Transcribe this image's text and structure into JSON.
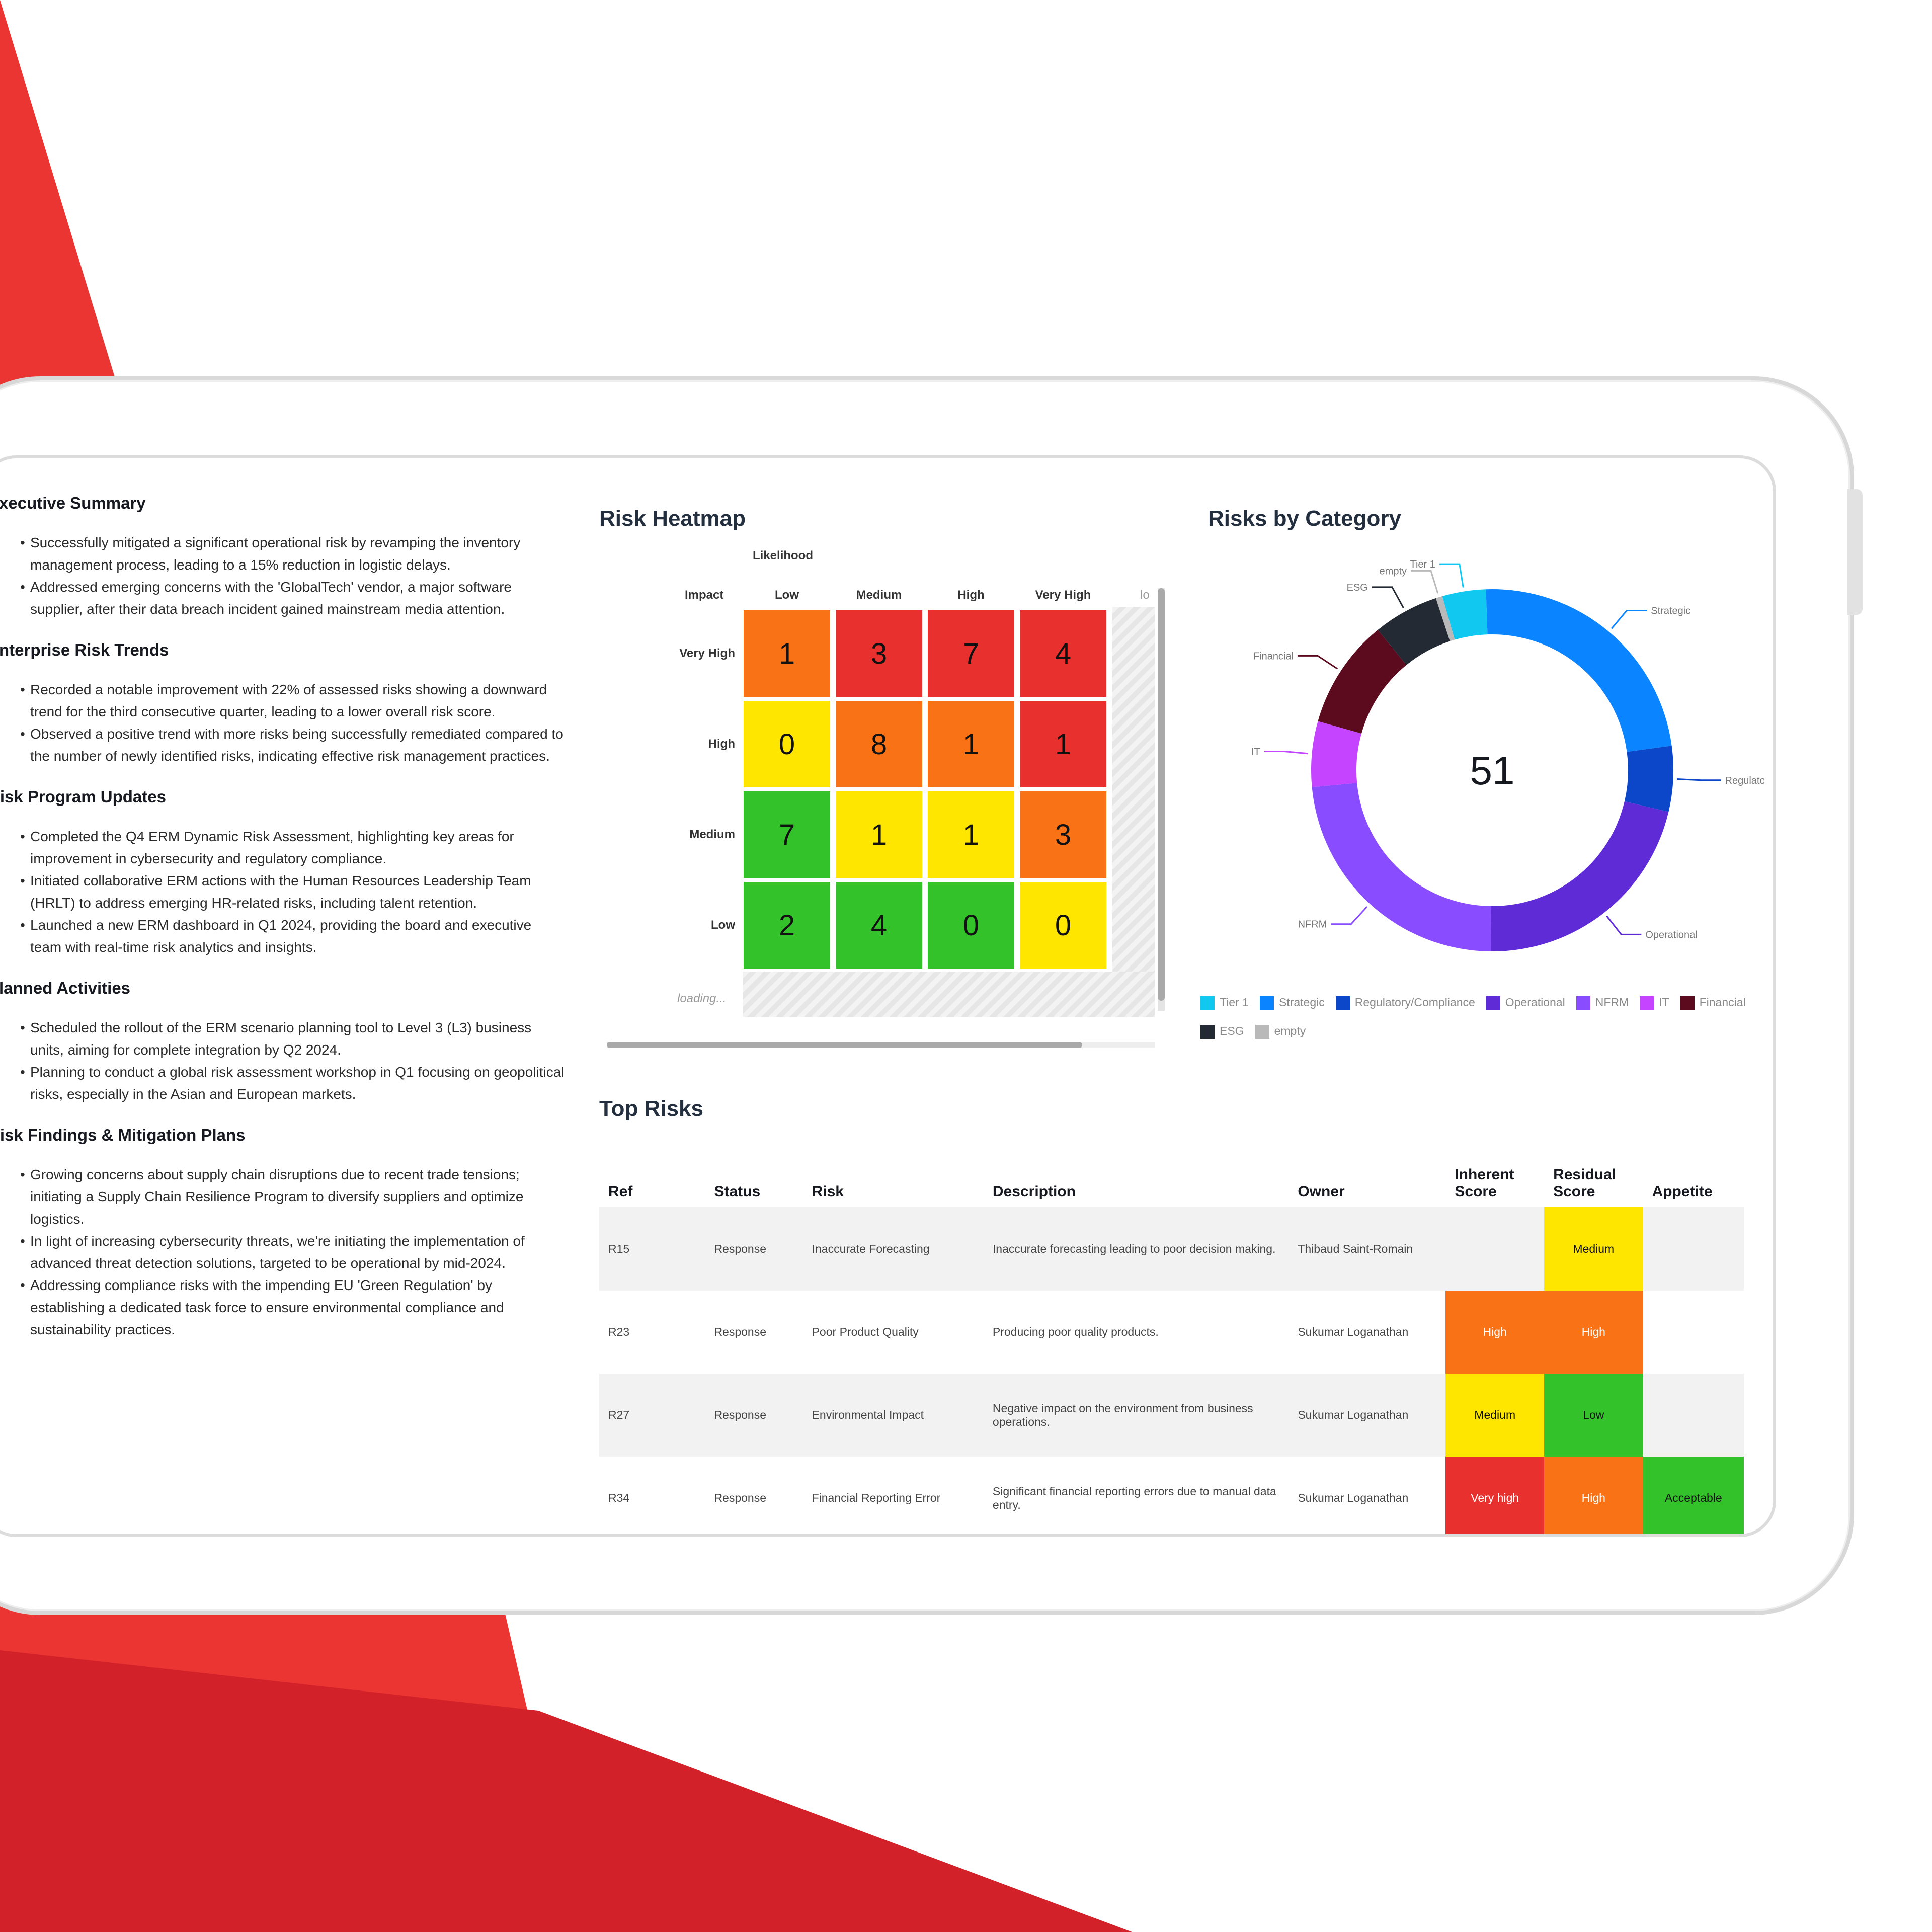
{
  "colors": {
    "accent_red": "#e8322f",
    "accent_red_dark": "#d42027",
    "heat_very_high": "#e8312f",
    "heat_high": "#f97316",
    "heat_medium": "#ffe600",
    "heat_low": "#33c22a"
  },
  "summary": [
    {
      "title": "Executive Summary",
      "bullets": [
        "Successfully mitigated a significant operational risk by revamping the inventory management process, leading to a 15% reduction in logistic delays.",
        "Addressed emerging concerns with the 'GlobalTech' vendor, a major software supplier, after their data breach incident gained mainstream media attention."
      ]
    },
    {
      "title": "Enterprise Risk Trends",
      "bullets": [
        "Recorded a notable improvement with 22% of assessed risks showing a downward trend for the third consecutive quarter, leading to a lower overall risk score.",
        "Observed a positive trend with more risks being successfully remediated compared to the number of newly identified risks, indicating effective risk management practices."
      ]
    },
    {
      "title": "Risk Program Updates",
      "bullets": [
        "Completed the Q4 ERM Dynamic Risk Assessment, highlighting key areas for improvement in cybersecurity and regulatory compliance.",
        "Initiated collaborative ERM actions with the Human Resources Leadership Team (HRLT) to address emerging HR-related risks, including talent retention.",
        "Launched a new ERM dashboard in Q1 2024, providing the board and executive team with real-time risk analytics and insights."
      ]
    },
    {
      "title": "Planned Activities",
      "bullets": [
        "Scheduled the rollout of the ERM scenario planning tool to Level 3 (L3) business units, aiming for complete integration by Q2 2024.",
        "Planning to conduct a global risk assessment workshop in Q1 focusing on geopolitical risks, especially in the Asian and European markets."
      ]
    },
    {
      "title": "Risk Findings & Mitigation Plans",
      "bullets": [
        "Growing concerns about supply chain disruptions due to recent trade tensions; initiating a Supply Chain Resilience Program to diversify suppliers and optimize logistics.",
        "In light of increasing cybersecurity threats, we're initiating the implementation of advanced threat detection solutions, targeted to be operational by mid-2024.",
        "Addressing compliance risks with the impending EU 'Green Regulation' by establishing a dedicated task force to ensure environmental compliance and sustainability practices."
      ]
    }
  ],
  "heatmap": {
    "title": "Risk Heatmap",
    "likelihood_label": "Likelihood",
    "impact_label": "Impact",
    "columns": [
      "Low",
      "Medium",
      "High",
      "Very High"
    ],
    "extra_column_stub": "lo",
    "rows": [
      {
        "label": "Very High",
        "values": [
          1,
          3,
          7,
          4
        ],
        "levels": [
          "high",
          "very_high",
          "very_high",
          "very_high"
        ]
      },
      {
        "label": "High",
        "values": [
          0,
          8,
          1,
          1
        ],
        "levels": [
          "medium",
          "high",
          "high",
          "very_high"
        ]
      },
      {
        "label": "Medium",
        "values": [
          7,
          1,
          1,
          3
        ],
        "levels": [
          "low",
          "medium",
          "medium",
          "high"
        ]
      },
      {
        "label": "Low",
        "values": [
          2,
          4,
          0,
          0
        ],
        "levels": [
          "low",
          "low",
          "low",
          "medium"
        ]
      }
    ],
    "loading_text": "loading..."
  },
  "category": {
    "title": "Risks by Category",
    "center_value": "51",
    "chart_data": {
      "type": "pie",
      "total": 51,
      "categories": [
        "Tier 1",
        "Strategic",
        "Regulatory/Compliance",
        "Operational",
        "NFRM",
        "IT",
        "Financial",
        "ESG",
        "empty"
      ],
      "values": [
        2,
        12,
        3,
        11,
        12,
        3,
        5,
        3,
        0.3
      ],
      "colors": [
        "#10c8f0",
        "#0a84ff",
        "#0d47c9",
        "#5f2bd6",
        "#8a4cff",
        "#c444ff",
        "#5c0a1e",
        "#232a33",
        "#b9b9b9"
      ],
      "callout_labels": [
        "Tier 1",
        "Strategic",
        "Regulatory...",
        "Operational",
        "NFRM",
        "IT",
        "Financial",
        "ESG",
        "empty"
      ]
    }
  },
  "top_risks": {
    "title": "Top Risks",
    "headers": [
      "Ref",
      "Status",
      "Risk",
      "Description",
      "Owner",
      "Inherent Score",
      "Residual Score",
      "Appetite"
    ],
    "rows": [
      {
        "ref": "R15",
        "status": "Response",
        "risk": "Inaccurate Forecasting",
        "description": "Inaccurate forecasting leading to poor decision making.",
        "owner": "Thibaud Saint-Romain",
        "inherent": "",
        "inherent_color": "",
        "residual": "Medium",
        "residual_color": "#ffe600",
        "appetite": "",
        "appetite_color": ""
      },
      {
        "ref": "R23",
        "status": "Response",
        "risk": "Poor Product Quality",
        "description": "Producing poor quality products.",
        "owner": "Sukumar Loganathan",
        "inherent": "High",
        "inherent_color": "#f97316",
        "residual": "High",
        "residual_color": "#f97316",
        "appetite": "",
        "appetite_color": ""
      },
      {
        "ref": "R27",
        "status": "Response",
        "risk": "Environmental Impact",
        "description": "Negative impact on the environment from business operations.",
        "owner": "Sukumar Loganathan",
        "inherent": "Medium",
        "inherent_color": "#ffe600",
        "residual": "Low",
        "residual_color": "#33c22a",
        "appetite": "",
        "appetite_color": ""
      },
      {
        "ref": "R34",
        "status": "Response",
        "risk": "Financial Reporting Error",
        "description": "Significant financial reporting errors due to manual data entry.",
        "owner": "Sukumar Loganathan",
        "inherent": "Very high",
        "inherent_color": "#e8312f",
        "residual": "High",
        "residual_color": "#f97316",
        "appetite": "Acceptable",
        "appetite_color": "#33c22a"
      }
    ]
  }
}
